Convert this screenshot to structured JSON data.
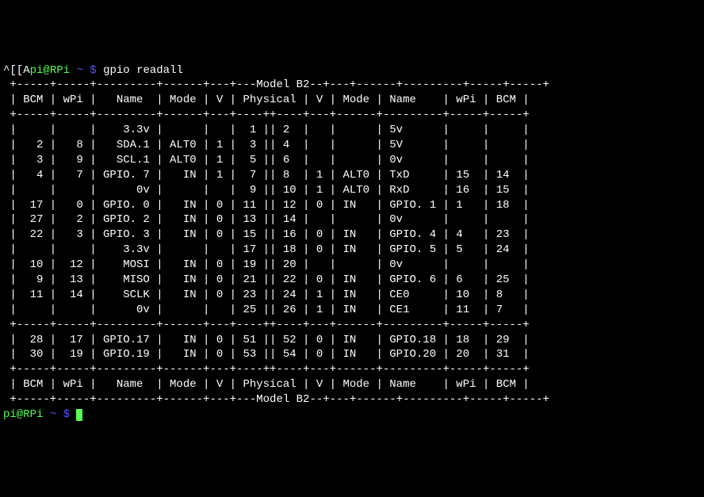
{
  "terminal": {
    "colors": {
      "bg": "#000000",
      "fg": "#ffffff",
      "green": "#55ff55",
      "blue": "#5555ff"
    },
    "prompt1_prefix": "^[[A",
    "prompt_user_host": "pi@RPi",
    "prompt_tilde": "~ $",
    "command": "gpio readall",
    "model_label": "Model B2",
    "headers": [
      "BCM",
      "wPi",
      "Name",
      "Mode",
      "V",
      "Physical",
      "V",
      "Mode",
      "Name",
      "wPi",
      "BCM"
    ],
    "rows_main": [
      {
        "l": {
          "bcm": "",
          "wpi": "",
          "name": "3.3v",
          "mode": "",
          "v": ""
        },
        "phys": [
          1,
          2
        ],
        "r": {
          "v": "",
          "mode": "",
          "name": "5v",
          "wpi": "",
          "bcm": ""
        }
      },
      {
        "l": {
          "bcm": "2",
          "wpi": "8",
          "name": "SDA.1",
          "mode": "ALT0",
          "v": "1"
        },
        "phys": [
          3,
          4
        ],
        "r": {
          "v": "",
          "mode": "",
          "name": "5V",
          "wpi": "",
          "bcm": ""
        }
      },
      {
        "l": {
          "bcm": "3",
          "wpi": "9",
          "name": "SCL.1",
          "mode": "ALT0",
          "v": "1"
        },
        "phys": [
          5,
          6
        ],
        "r": {
          "v": "",
          "mode": "",
          "name": "0v",
          "wpi": "",
          "bcm": ""
        }
      },
      {
        "l": {
          "bcm": "4",
          "wpi": "7",
          "name": "GPIO. 7",
          "mode": "IN",
          "v": "1"
        },
        "phys": [
          7,
          8
        ],
        "r": {
          "v": "1",
          "mode": "ALT0",
          "name": "TxD",
          "wpi": "15",
          "bcm": "14"
        }
      },
      {
        "l": {
          "bcm": "",
          "wpi": "",
          "name": "0v",
          "mode": "",
          "v": ""
        },
        "phys": [
          9,
          10
        ],
        "r": {
          "v": "1",
          "mode": "ALT0",
          "name": "RxD",
          "wpi": "16",
          "bcm": "15"
        }
      },
      {
        "l": {
          "bcm": "17",
          "wpi": "0",
          "name": "GPIO. 0",
          "mode": "IN",
          "v": "0"
        },
        "phys": [
          11,
          12
        ],
        "r": {
          "v": "0",
          "mode": "IN",
          "name": "GPIO. 1",
          "wpi": "1",
          "bcm": "18"
        }
      },
      {
        "l": {
          "bcm": "27",
          "wpi": "2",
          "name": "GPIO. 2",
          "mode": "IN",
          "v": "0"
        },
        "phys": [
          13,
          14
        ],
        "r": {
          "v": "",
          "mode": "",
          "name": "0v",
          "wpi": "",
          "bcm": ""
        }
      },
      {
        "l": {
          "bcm": "22",
          "wpi": "3",
          "name": "GPIO. 3",
          "mode": "IN",
          "v": "0"
        },
        "phys": [
          15,
          16
        ],
        "r": {
          "v": "0",
          "mode": "IN",
          "name": "GPIO. 4",
          "wpi": "4",
          "bcm": "23"
        }
      },
      {
        "l": {
          "bcm": "",
          "wpi": "",
          "name": "3.3v",
          "mode": "",
          "v": ""
        },
        "phys": [
          17,
          18
        ],
        "r": {
          "v": "0",
          "mode": "IN",
          "name": "GPIO. 5",
          "wpi": "5",
          "bcm": "24"
        }
      },
      {
        "l": {
          "bcm": "10",
          "wpi": "12",
          "name": "MOSI",
          "mode": "IN",
          "v": "0"
        },
        "phys": [
          19,
          20
        ],
        "r": {
          "v": "",
          "mode": "",
          "name": "0v",
          "wpi": "",
          "bcm": ""
        }
      },
      {
        "l": {
          "bcm": "9",
          "wpi": "13",
          "name": "MISO",
          "mode": "IN",
          "v": "0"
        },
        "phys": [
          21,
          22
        ],
        "r": {
          "v": "0",
          "mode": "IN",
          "name": "GPIO. 6",
          "wpi": "6",
          "bcm": "25"
        }
      },
      {
        "l": {
          "bcm": "11",
          "wpi": "14",
          "name": "SCLK",
          "mode": "IN",
          "v": "0"
        },
        "phys": [
          23,
          24
        ],
        "r": {
          "v": "1",
          "mode": "IN",
          "name": "CE0",
          "wpi": "10",
          "bcm": "8"
        }
      },
      {
        "l": {
          "bcm": "",
          "wpi": "",
          "name": "0v",
          "mode": "",
          "v": ""
        },
        "phys": [
          25,
          26
        ],
        "r": {
          "v": "1",
          "mode": "IN",
          "name": "CE1",
          "wpi": "11",
          "bcm": "7"
        }
      }
    ],
    "rows_ext": [
      {
        "l": {
          "bcm": "28",
          "wpi": "17",
          "name": "GPIO.17",
          "mode": "IN",
          "v": "0"
        },
        "phys": [
          51,
          52
        ],
        "r": {
          "v": "0",
          "mode": "IN",
          "name": "GPIO.18",
          "wpi": "18",
          "bcm": "29"
        }
      },
      {
        "l": {
          "bcm": "30",
          "wpi": "19",
          "name": "GPIO.19",
          "mode": "IN",
          "v": "0"
        },
        "phys": [
          53,
          54
        ],
        "r": {
          "v": "0",
          "mode": "IN",
          "name": "GPIO.20",
          "wpi": "20",
          "bcm": "31"
        }
      }
    ],
    "col_widths": {
      "bcm": 5,
      "wpi": 5,
      "name": 9,
      "mode": 6,
      "v": 3,
      "phys_l": 4,
      "phys_r": 4,
      "r_name": 8
    }
  }
}
